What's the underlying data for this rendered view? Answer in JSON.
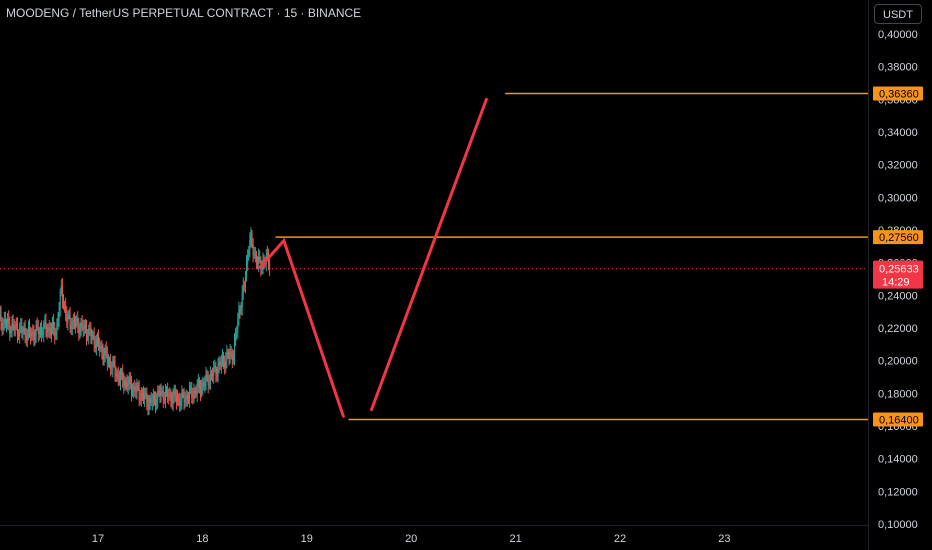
{
  "header": {
    "title": "MOODENG / TetherUS PERPETUAL CONTRACT · 15 · BINANCE",
    "currency": "USDT"
  },
  "colors": {
    "background": "#000000",
    "up_candle": "#26a69a",
    "down_candle": "#ef5350",
    "level_line": "#f7931a",
    "projection": "#f23645",
    "current_price": "#f23645",
    "axis_text": "#d1d4dc"
  },
  "chart_data": {
    "type": "candlestick",
    "title": "MOODENG / TetherUS PERPETUAL CONTRACT · 15 · BINANCE",
    "y_range": [
      0.1,
      0.41
    ],
    "x_range": [
      16.05,
      24.3
    ],
    "y_ticks": [
      "0,10000",
      "0,12000",
      "0,14000",
      "0,16000",
      "0,18000",
      "0,20000",
      "0,22000",
      "0,24000",
      "0,26000",
      "0,28000",
      "0,30000",
      "0,32000",
      "0,34000",
      "0,36000",
      "0,38000",
      "0,40000"
    ],
    "y_tick_values": [
      0.1,
      0.12,
      0.14,
      0.16,
      0.18,
      0.2,
      0.22,
      0.24,
      0.26,
      0.28,
      0.3,
      0.32,
      0.34,
      0.36,
      0.38,
      0.4
    ],
    "x_ticks": [
      {
        "label": "17",
        "x": 17
      },
      {
        "label": "18",
        "x": 18
      },
      {
        "label": "19",
        "x": 19
      },
      {
        "label": "20",
        "x": 20
      },
      {
        "label": "21",
        "x": 21
      },
      {
        "label": "22",
        "x": 22
      },
      {
        "label": "23",
        "x": 23
      }
    ],
    "price_trend": [
      [
        16.05,
        0.225
      ],
      [
        16.2,
        0.22
      ],
      [
        16.35,
        0.216
      ],
      [
        16.5,
        0.22
      ],
      [
        16.6,
        0.218
      ],
      [
        16.65,
        0.244
      ],
      [
        16.7,
        0.225
      ],
      [
        16.8,
        0.222
      ],
      [
        16.9,
        0.218
      ],
      [
        17.0,
        0.21
      ],
      [
        17.1,
        0.2
      ],
      [
        17.2,
        0.19
      ],
      [
        17.3,
        0.185
      ],
      [
        17.4,
        0.18
      ],
      [
        17.5,
        0.174
      ],
      [
        17.6,
        0.18
      ],
      [
        17.7,
        0.178
      ],
      [
        17.8,
        0.176
      ],
      [
        17.9,
        0.18
      ],
      [
        18.0,
        0.185
      ],
      [
        18.1,
        0.192
      ],
      [
        18.2,
        0.2
      ],
      [
        18.3,
        0.205
      ],
      [
        18.35,
        0.23
      ],
      [
        18.4,
        0.245
      ],
      [
        18.45,
        0.275
      ],
      [
        18.5,
        0.265
      ],
      [
        18.55,
        0.258
      ],
      [
        18.6,
        0.262
      ],
      [
        18.65,
        0.26
      ]
    ],
    "horizontal_levels": [
      {
        "label": "0,36360",
        "value": 0.3636,
        "x_start": 20.9
      },
      {
        "label": "0,27560",
        "value": 0.2756,
        "x_start": 18.7
      },
      {
        "label": "0,16400",
        "value": 0.164,
        "x_start": 19.4
      }
    ],
    "projection_segments": [
      {
        "points": [
          [
            18.55,
            0.257
          ],
          [
            18.78,
            0.2735
          ],
          [
            19.35,
            0.166
          ]
        ]
      },
      {
        "points": [
          [
            19.62,
            0.17
          ],
          [
            20.72,
            0.36
          ]
        ]
      }
    ],
    "current_price": {
      "label": "0,25633",
      "value": 0.25633,
      "countdown": "14:29"
    }
  }
}
